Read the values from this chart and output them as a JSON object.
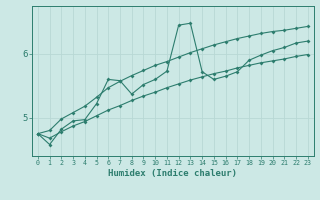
{
  "xlabel": "Humidex (Indice chaleur)",
  "bg_color": "#cce8e5",
  "line_color": "#2d7d6e",
  "grid_color": "#b8d8d5",
  "x_data": [
    0,
    1,
    2,
    3,
    4,
    5,
    6,
    7,
    8,
    9,
    10,
    11,
    12,
    13,
    14,
    15,
    16,
    17,
    18,
    19,
    20,
    21,
    22,
    23
  ],
  "y_main": [
    4.75,
    4.58,
    4.82,
    4.95,
    4.97,
    5.22,
    5.6,
    5.58,
    5.37,
    5.52,
    5.6,
    5.73,
    6.45,
    6.48,
    5.72,
    5.6,
    5.65,
    5.72,
    5.9,
    5.98,
    6.05,
    6.1,
    6.17,
    6.2
  ],
  "y_upper": [
    4.75,
    4.8,
    4.98,
    5.08,
    5.18,
    5.32,
    5.47,
    5.57,
    5.66,
    5.74,
    5.82,
    5.88,
    5.95,
    6.02,
    6.08,
    6.14,
    6.19,
    6.24,
    6.28,
    6.32,
    6.35,
    6.37,
    6.4,
    6.43
  ],
  "y_lower": [
    4.75,
    4.68,
    4.78,
    4.87,
    4.94,
    5.03,
    5.12,
    5.19,
    5.27,
    5.34,
    5.4,
    5.47,
    5.53,
    5.59,
    5.64,
    5.69,
    5.73,
    5.78,
    5.82,
    5.86,
    5.89,
    5.92,
    5.96,
    5.99
  ],
  "ylim": [
    4.4,
    6.75
  ],
  "yticks": [
    5,
    6
  ],
  "xlim": [
    -0.5,
    23.5
  ],
  "xticks": [
    0,
    1,
    2,
    3,
    4,
    5,
    6,
    7,
    8,
    9,
    10,
    11,
    12,
    13,
    14,
    15,
    16,
    17,
    18,
    19,
    20,
    21,
    22,
    23
  ]
}
